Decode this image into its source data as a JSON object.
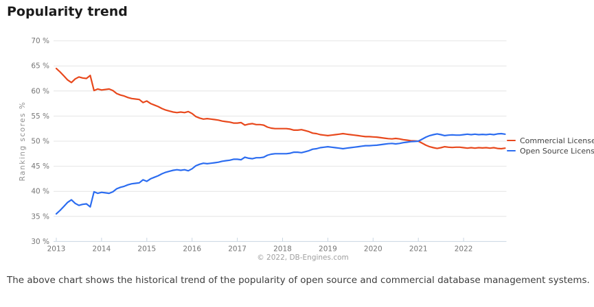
{
  "page": {
    "title": "Popularity trend",
    "caption": "The above chart shows the historical trend of the popularity of open source and commercial database management systems."
  },
  "chart_data": {
    "type": "line",
    "title": "Popularity trend",
    "ylabel": "Ranking scores %",
    "xlabel": "",
    "attribution": "© 2022, DB-Engines.com",
    "x_unit": "year (monthly samples, Jan 2013 - Dec 2022)",
    "x_start": 2013.0,
    "x_step": 0.0833333,
    "x_ticks": [
      2013,
      2014,
      2015,
      2016,
      2017,
      2018,
      2019,
      2020,
      2021,
      2022
    ],
    "y_ticks": [
      30,
      35,
      40,
      45,
      50,
      55,
      60,
      65,
      70
    ],
    "y_tick_suffix": " %",
    "ylim": [
      30,
      70
    ],
    "grid": true,
    "legend_position": "right",
    "series": [
      {
        "name": "Commercial License",
        "color": "#e8481c",
        "values": [
          64.5,
          63.8,
          63.0,
          62.2,
          61.7,
          62.4,
          62.8,
          62.6,
          62.5,
          63.1,
          60.1,
          60.4,
          60.2,
          60.3,
          60.4,
          60.1,
          59.5,
          59.2,
          59.0,
          58.7,
          58.5,
          58.4,
          58.3,
          57.7,
          58.0,
          57.5,
          57.2,
          56.9,
          56.5,
          56.2,
          56.0,
          55.8,
          55.7,
          55.8,
          55.7,
          55.9,
          55.5,
          54.9,
          54.6,
          54.4,
          54.5,
          54.4,
          54.3,
          54.2,
          54.0,
          53.9,
          53.8,
          53.6,
          53.6,
          53.7,
          53.2,
          53.4,
          53.5,
          53.3,
          53.3,
          53.2,
          52.8,
          52.6,
          52.5,
          52.5,
          52.5,
          52.5,
          52.4,
          52.2,
          52.2,
          52.3,
          52.1,
          51.9,
          51.6,
          51.5,
          51.3,
          51.2,
          51.1,
          51.2,
          51.3,
          51.4,
          51.5,
          51.4,
          51.3,
          51.2,
          51.1,
          51.0,
          50.9,
          50.9,
          50.85,
          50.8,
          50.7,
          50.6,
          50.5,
          50.45,
          50.55,
          50.45,
          50.3,
          50.2,
          50.1,
          50.05,
          50.0,
          49.6,
          49.2,
          48.9,
          48.7,
          48.55,
          48.7,
          48.9,
          48.8,
          48.75,
          48.8,
          48.8,
          48.7,
          48.6,
          48.7,
          48.6,
          48.7,
          48.65,
          48.7,
          48.6,
          48.7,
          48.55,
          48.5,
          48.6
        ]
      },
      {
        "name": "Open Source License",
        "color": "#2b6cf0",
        "values": [
          35.5,
          36.2,
          37.0,
          37.8,
          38.3,
          37.6,
          37.2,
          37.4,
          37.5,
          36.9,
          39.9,
          39.6,
          39.8,
          39.7,
          39.6,
          39.9,
          40.5,
          40.8,
          41.0,
          41.3,
          41.5,
          41.6,
          41.7,
          42.3,
          42.0,
          42.5,
          42.8,
          43.1,
          43.5,
          43.8,
          44.0,
          44.2,
          44.3,
          44.2,
          44.3,
          44.1,
          44.5,
          45.1,
          45.4,
          45.6,
          45.5,
          45.6,
          45.7,
          45.8,
          46.0,
          46.1,
          46.2,
          46.4,
          46.4,
          46.3,
          46.8,
          46.6,
          46.5,
          46.7,
          46.7,
          46.8,
          47.2,
          47.4,
          47.5,
          47.5,
          47.5,
          47.5,
          47.6,
          47.8,
          47.8,
          47.7,
          47.9,
          48.1,
          48.4,
          48.5,
          48.7,
          48.8,
          48.9,
          48.8,
          48.7,
          48.6,
          48.5,
          48.6,
          48.7,
          48.8,
          48.9,
          49.0,
          49.1,
          49.1,
          49.15,
          49.2,
          49.3,
          49.4,
          49.5,
          49.55,
          49.45,
          49.55,
          49.7,
          49.8,
          49.9,
          49.95,
          50.0,
          50.4,
          50.8,
          51.1,
          51.3,
          51.45,
          51.3,
          51.1,
          51.2,
          51.25,
          51.2,
          51.2,
          51.3,
          51.4,
          51.3,
          51.4,
          51.3,
          51.35,
          51.3,
          51.4,
          51.3,
          51.45,
          51.5,
          51.4
        ]
      }
    ]
  }
}
